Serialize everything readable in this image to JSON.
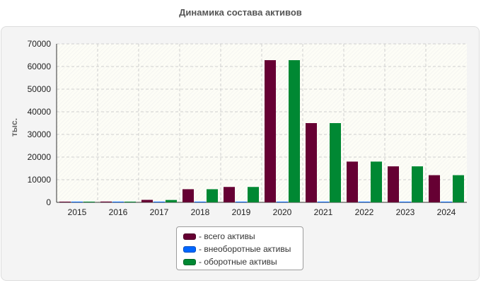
{
  "chart_data": {
    "type": "bar",
    "title": "Динамика состава активов",
    "ylabel": "тыс.",
    "xlabel": "",
    "ylim": [
      0,
      70000
    ],
    "yticks": [
      0,
      10000,
      20000,
      30000,
      40000,
      50000,
      60000,
      70000
    ],
    "categories": [
      "2015",
      "2016",
      "2017",
      "2018",
      "2019",
      "2020",
      "2021",
      "2022",
      "2023",
      "2024"
    ],
    "series": [
      {
        "name": "всего активы",
        "color": "#660033",
        "values": [
          300,
          350,
          1100,
          5800,
          6800,
          62800,
          35000,
          18000,
          15900,
          12000
        ]
      },
      {
        "name": "внеоборотные активы",
        "color": "#0066ff",
        "values": [
          150,
          150,
          150,
          150,
          150,
          150,
          150,
          150,
          150,
          150
        ]
      },
      {
        "name": "оборотные активы",
        "color": "#008833",
        "values": [
          250,
          300,
          1050,
          5800,
          6800,
          62800,
          35000,
          18000,
          15900,
          12000
        ]
      }
    ],
    "legend_prefix": "- ",
    "legend_position": "bottom-center",
    "grid": true
  }
}
